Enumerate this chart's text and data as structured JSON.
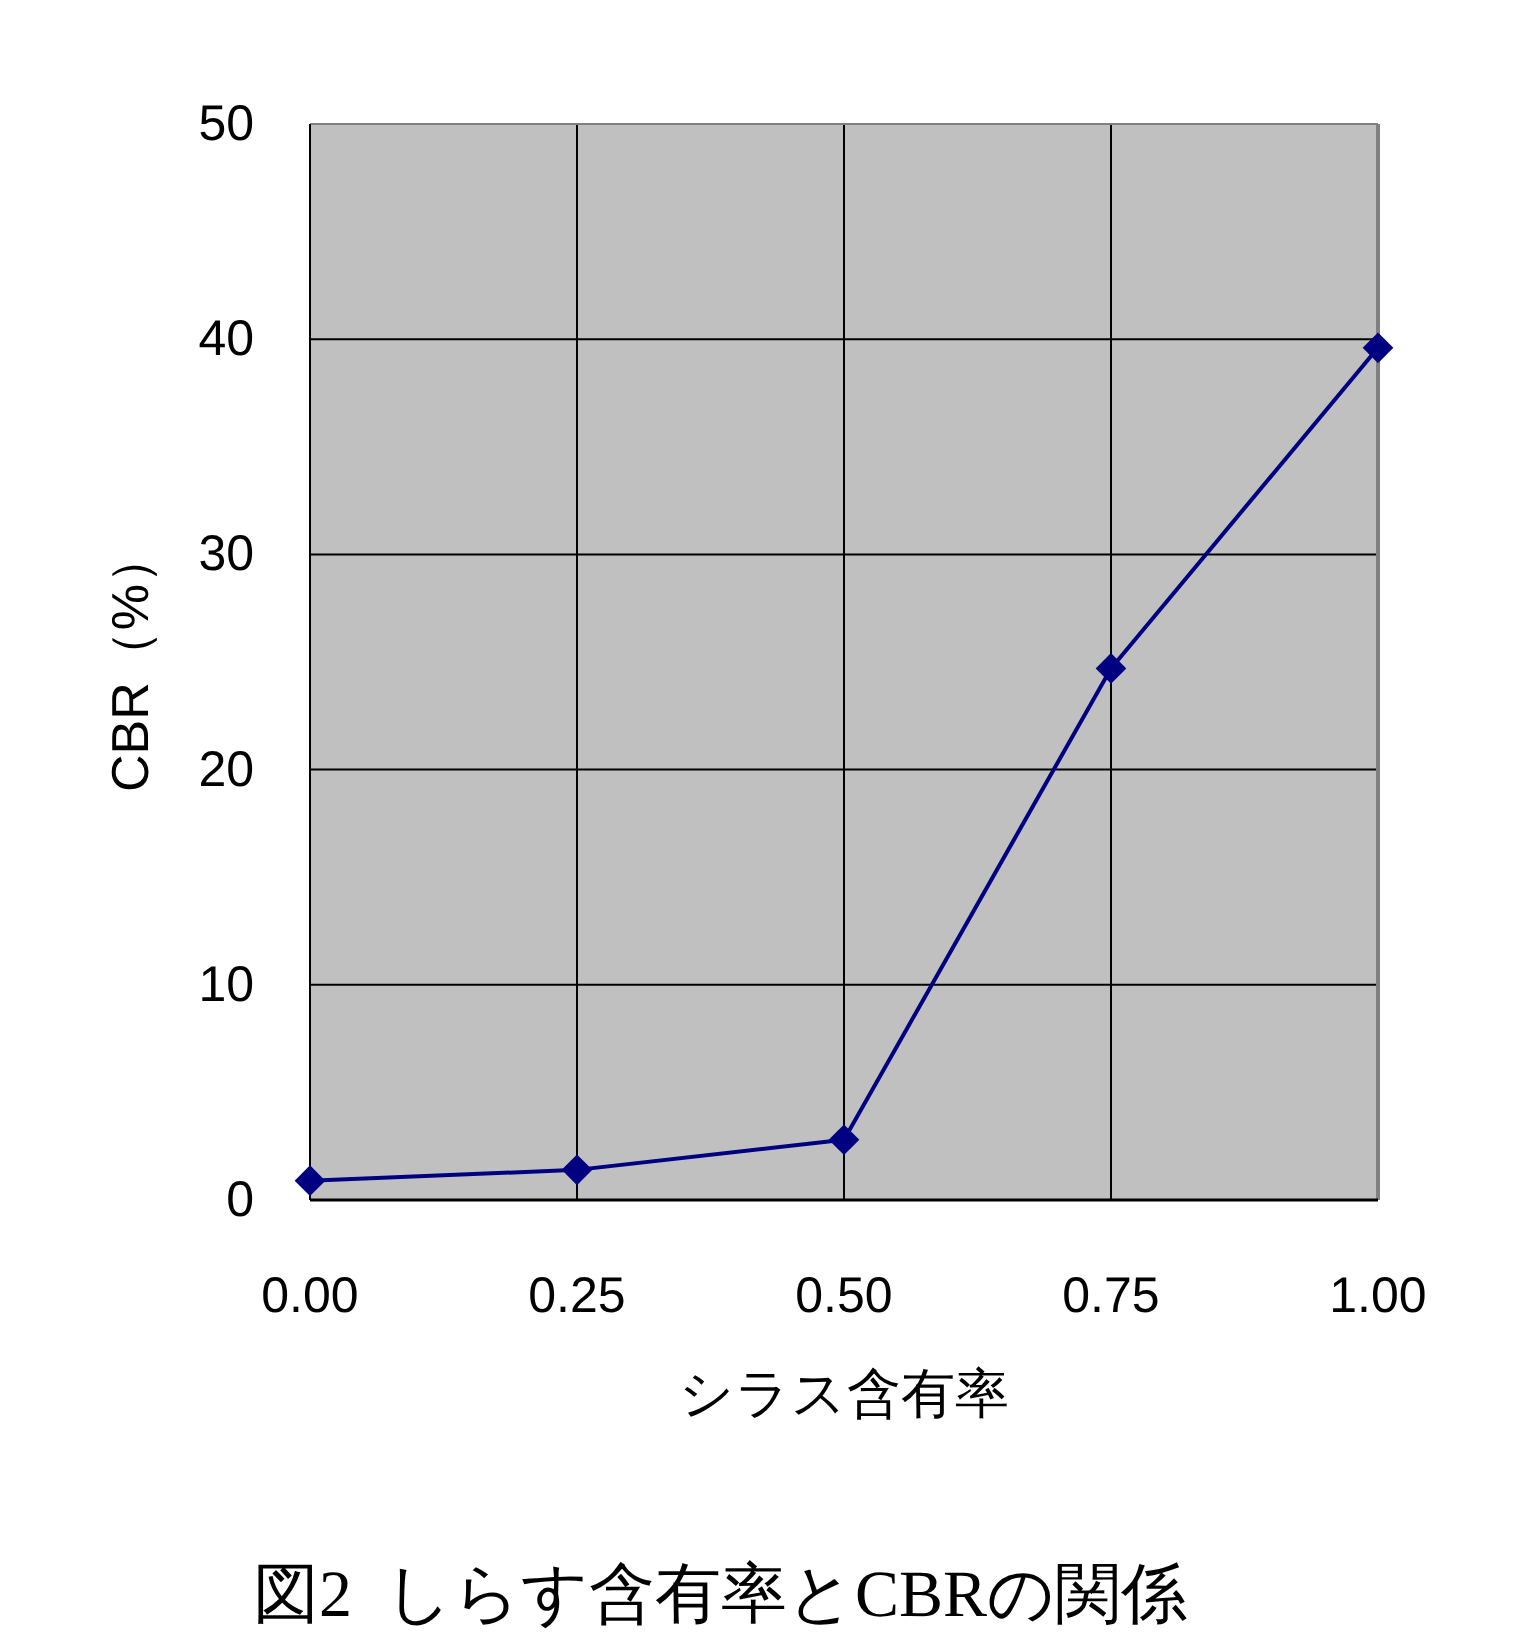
{
  "chart_data": {
    "type": "line",
    "title": "図2  しらす含有率とCBRの関係",
    "xlabel": "シラス含有率",
    "ylabel": "CBR（%）",
    "x": [
      0,
      0.25,
      0.5,
      0.75,
      1
    ],
    "series": [
      {
        "color": "#000080",
        "values": [
          0.9,
          1.4,
          2.8,
          24.7,
          39.6
        ]
      }
    ],
    "xlim": [
      0,
      1
    ],
    "xticks": [
      {
        "value": 0,
        "label": "0.00"
      },
      {
        "value": 0.25,
        "label": "0.25"
      },
      {
        "value": 0.5,
        "label": "0.50"
      },
      {
        "value": 0.75,
        "label": "0.75"
      },
      {
        "value": 1,
        "label": "1.00"
      }
    ],
    "ylim": [
      0,
      50
    ],
    "yticks": [
      0,
      10,
      20,
      30,
      40,
      50
    ],
    "grid": true,
    "marker": "diamond",
    "line_style": "solid"
  }
}
